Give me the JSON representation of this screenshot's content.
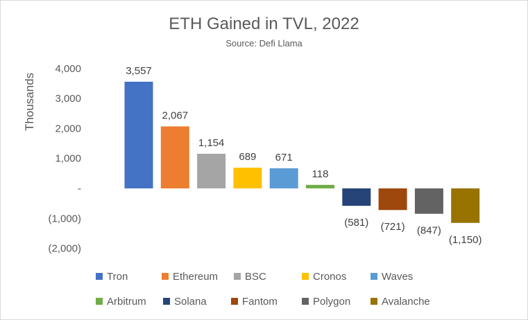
{
  "chart_data": {
    "type": "bar",
    "title": "ETH Gained in TVL, 2022",
    "subtitle": "Source: Defi Llama",
    "xlabel": "",
    "ylabel": "Thousands",
    "ylim": [
      -2000,
      4000
    ],
    "yticks": [
      4000,
      3000,
      2000,
      1000,
      0,
      -1000,
      -2000
    ],
    "ytick_labels": [
      "4,000",
      "3,000",
      "2,000",
      "1,000",
      "-",
      "(1,000)",
      "(2,000)"
    ],
    "grid": false,
    "legend_position": "bottom",
    "categories": [
      "Tron",
      "Ethereum",
      "BSC",
      "Cronos",
      "Waves",
      "Arbitrum",
      "Solana",
      "Fantom",
      "Polygon",
      "Avalanche"
    ],
    "values": [
      3557,
      2067,
      1154,
      689,
      671,
      118,
      -581,
      -721,
      -847,
      -1150
    ],
    "data_labels": [
      "3,557",
      "2,067",
      "1,154",
      "689",
      "671",
      "118",
      "(581)",
      "(721)",
      "(847)",
      "(1,150)"
    ],
    "colors": [
      "#4472c4",
      "#ed7d31",
      "#a5a5a5",
      "#ffc000",
      "#5b9bd5",
      "#70ad47",
      "#264478",
      "#9e480e",
      "#636363",
      "#997300"
    ]
  }
}
